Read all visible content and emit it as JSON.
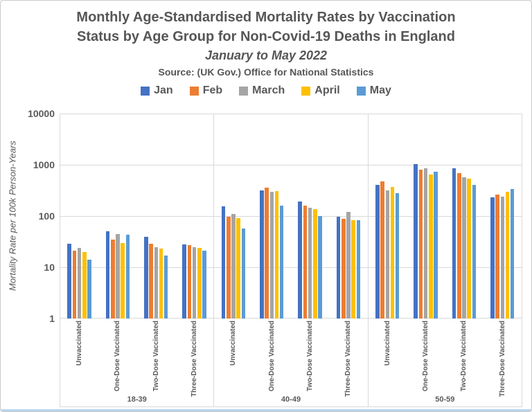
{
  "header": {
    "title_line1": "Monthly Age-Standardised Mortality Rates by Vaccination",
    "title_line2": "Status by Age Group for Non-Covid-19 Deaths in England",
    "subtitle": "January to May 2022",
    "source": "Source: (UK Gov.) Office for National Statistics"
  },
  "legend": {
    "items": [
      {
        "label": "Jan",
        "color": "#4472C4"
      },
      {
        "label": "Feb",
        "color": "#ED7D31"
      },
      {
        "label": "March",
        "color": "#A5A5A5"
      },
      {
        "label": "April",
        "color": "#FFC000"
      },
      {
        "label": "May",
        "color": "#5B9BD5"
      }
    ]
  },
  "chart_data": {
    "type": "bar",
    "title": "Monthly Age-Standardised Mortality Rates by Vaccination Status by Age Group for Non-Covid-19 Deaths in England",
    "subtitle": "January to May 2022",
    "source": "Source: (UK Gov.) Office for National Statistics",
    "ylabel": "Mortality Rate per 100k Person-Years",
    "xlabel": "",
    "y_scale": "log",
    "ylim": [
      1,
      10000
    ],
    "y_ticks": [
      1,
      10,
      100,
      1000,
      10000
    ],
    "grid": true,
    "legend_position": "top",
    "age_groups": [
      "18-39",
      "40-49",
      "50-59"
    ],
    "categories": [
      "Unvaccinated",
      "One-Dose Vaccinated",
      "Two-Dose Vaccinated",
      "Three-Dose Vaccinated"
    ],
    "series": [
      {
        "name": "Jan",
        "color": "#4472C4",
        "values": {
          "18-39": [
            29,
            50,
            39,
            28
          ],
          "40-49": [
            155,
            320,
            190,
            97
          ],
          "50-59": [
            400,
            1040,
            870,
            230
          ]
        }
      },
      {
        "name": "Feb",
        "color": "#ED7D31",
        "values": {
          "18-39": [
            21,
            35,
            29,
            27
          ],
          "40-49": [
            98,
            360,
            160,
            88
          ],
          "50-59": [
            470,
            810,
            690,
            260
          ]
        }
      },
      {
        "name": "March",
        "color": "#A5A5A5",
        "values": {
          "18-39": [
            24,
            45,
            25,
            25
          ],
          "40-49": [
            110,
            300,
            147,
            120
          ],
          "50-59": [
            315,
            870,
            580,
            240
          ]
        }
      },
      {
        "name": "April",
        "color": "#FFC000",
        "values": {
          "18-39": [
            20,
            30,
            23,
            24
          ],
          "40-49": [
            90,
            310,
            135,
            84
          ],
          "50-59": [
            370,
            645,
            535,
            295
          ]
        }
      },
      {
        "name": "May",
        "color": "#5B9BD5",
        "values": {
          "18-39": [
            14,
            43,
            17,
            21
          ],
          "40-49": [
            58,
            160,
            100,
            82
          ],
          "50-59": [
            280,
            740,
            410,
            335
          ]
        }
      }
    ]
  }
}
